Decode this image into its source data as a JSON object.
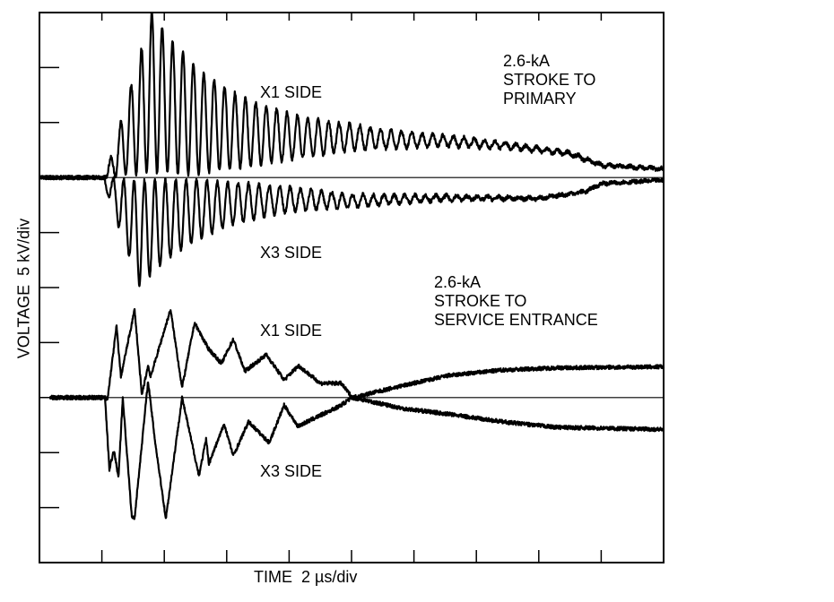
{
  "chart_data": {
    "type": "line",
    "xlabel": "TIME  2 µs/div",
    "ylabel": "VOLTAGE  5 kV/div",
    "x_unit": "µs",
    "y_unit": "kV",
    "xlim": [
      0,
      20
    ],
    "ylim": [
      -35,
      15
    ],
    "x_div": 2,
    "y_div": 5,
    "grid": false,
    "color": "#000000",
    "groups": [
      {
        "title_lines": [
          "2.6-kA",
          "STROKE TO",
          "PRIMARY"
        ],
        "trace_offset_kV": 0,
        "series": [
          {
            "name": "X1 SIDE",
            "oscillation": {
              "start_us": 2.1,
              "peak_time_us": 3.6,
              "peak_kV": 14.6,
              "decay_us": 3.55,
              "freq_MHz": 3.0,
              "sign": 1
            },
            "slow_points": [
              [
                0,
                0
              ],
              [
                5,
                0
              ],
              [
                8,
                1.5
              ],
              [
                10,
                2.4
              ],
              [
                13,
                2.8
              ],
              [
                15,
                2.6
              ],
              [
                17,
                2.0
              ],
              [
                18,
                1.0
              ],
              [
                20,
                0.7
              ]
            ]
          },
          {
            "name": "X3 SIDE",
            "oscillation": {
              "start_us": 2.0,
              "peak_time_us": 3.2,
              "peak_kV": 9.6,
              "decay_us": 3.3,
              "freq_MHz": 3.0,
              "sign": -1
            },
            "slow_points": [
              [
                0,
                0
              ],
              [
                5,
                0
              ],
              [
                8,
                -0.8
              ],
              [
                10,
                -1.5
              ],
              [
                13,
                -1.6
              ],
              [
                16,
                -1.8
              ],
              [
                17.5,
                -1.2
              ],
              [
                18,
                -0.5
              ],
              [
                20,
                -0.2
              ]
            ]
          }
        ]
      },
      {
        "title_lines": [
          "2.6-kA",
          "STROKE TO",
          "SERVICE ENTRANCE"
        ],
        "trace_offset_kV": -20,
        "series": [
          {
            "name": "X1 SIDE",
            "points": [
              [
                0.34,
                0
              ],
              [
                2.1,
                0
              ],
              [
                2.18,
                -0.2
              ],
              [
                2.47,
                6.5
              ],
              [
                2.61,
                1.9
              ],
              [
                3.05,
                8.0
              ],
              [
                3.28,
                0.2
              ],
              [
                3.48,
                2.9
              ],
              [
                3.56,
                1.9
              ],
              [
                4.2,
                8.0
              ],
              [
                4.57,
                0.9
              ],
              [
                4.97,
                6.8
              ],
              [
                5.4,
                4.5
              ],
              [
                5.83,
                3.1
              ],
              [
                6.21,
                5.3
              ],
              [
                6.58,
                2.4
              ],
              [
                7.27,
                3.9
              ],
              [
                7.84,
                1.6
              ],
              [
                8.3,
                2.9
              ],
              [
                9.0,
                1.3
              ],
              [
                9.66,
                1.3
              ],
              [
                10.03,
                0
              ],
              [
                11.67,
                1.1
              ],
              [
                13.1,
                2.0
              ],
              [
                14.83,
                2.5
              ],
              [
                16.55,
                2.7
              ],
              [
                20.0,
                2.8
              ]
            ]
          },
          {
            "name": "X3 SIDE",
            "points": [
              [
                0.34,
                0
              ],
              [
                2.1,
                0
              ],
              [
                2.24,
                -6.5
              ],
              [
                2.39,
                -4.8
              ],
              [
                2.53,
                -7.3
              ],
              [
                2.67,
                0
              ],
              [
                2.96,
                -10.9
              ],
              [
                3.05,
                -10.9
              ],
              [
                3.48,
                1.5
              ],
              [
                3.71,
                -4.1
              ],
              [
                4.05,
                -11.0
              ],
              [
                4.57,
                0
              ],
              [
                5.11,
                -7.1
              ],
              [
                5.34,
                -3.8
              ],
              [
                5.43,
                -6.0
              ],
              [
                5.92,
                -2.4
              ],
              [
                6.21,
                -5.3
              ],
              [
                6.7,
                -2.2
              ],
              [
                7.36,
                -4.1
              ],
              [
                7.84,
                -0.7
              ],
              [
                8.28,
                -2.6
              ],
              [
                9.6,
                -0.8
              ],
              [
                10.03,
                0
              ],
              [
                11.67,
                -1.0
              ],
              [
                13.1,
                -1.5
              ],
              [
                14.83,
                -2.2
              ],
              [
                16.55,
                -2.7
              ],
              [
                20.0,
                -2.9
              ]
            ]
          }
        ]
      }
    ]
  }
}
